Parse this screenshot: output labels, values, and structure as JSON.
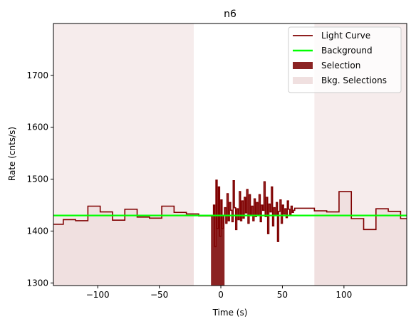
{
  "chart_data": {
    "type": "line",
    "title": "n6",
    "xlabel": "Time (s)",
    "ylabel": "Rate (cnts/s)",
    "xlim": [
      -136,
      151
    ],
    "ylim": [
      1295,
      1800
    ],
    "xticks": [
      -100,
      -50,
      0,
      50,
      100
    ],
    "yticks": [
      1300,
      1400,
      1500,
      1600,
      1700
    ],
    "grid": false,
    "legend_position": "top-right",
    "colors": {
      "light_curve": "#7f0000",
      "background": "#00ff00",
      "selection": "#8b2323",
      "bkg_selection": "#f0e0e0"
    },
    "legend": [
      {
        "label": "Light Curve",
        "kind": "line",
        "color": "#7f0000"
      },
      {
        "label": "Background",
        "kind": "line",
        "color": "#00ff00"
      },
      {
        "label": "Selection",
        "kind": "patch",
        "color": "#8b2323"
      },
      {
        "label": "Bkg. Selections",
        "kind": "patch",
        "color": "#f0e0e0"
      }
    ],
    "series": [
      {
        "name": "Light Curve",
        "step": "post",
        "x": [
          -136,
          -128,
          -118,
          -108,
          -98,
          -88,
          -78,
          -68,
          -58,
          -48,
          -38,
          -28,
          -18,
          -6,
          -5,
          -4,
          -3,
          -2,
          -1,
          0,
          1,
          2,
          3,
          4,
          5,
          6,
          7,
          8,
          9,
          10,
          11,
          12,
          13,
          14,
          15,
          16,
          17,
          18,
          19,
          20,
          21,
          22,
          23,
          24,
          25,
          26,
          27,
          28,
          29,
          30,
          31,
          32,
          33,
          34,
          35,
          36,
          37,
          38,
          39,
          40,
          41,
          42,
          43,
          44,
          45,
          46,
          47,
          48,
          49,
          50,
          51,
          52,
          53,
          54,
          55,
          56,
          57,
          58,
          59,
          60,
          76,
          86,
          96,
          106,
          116,
          126,
          136,
          146,
          151
        ],
        "y": [
          1413,
          1422,
          1420,
          1448,
          1437,
          1421,
          1442,
          1427,
          1425,
          1448,
          1436,
          1433,
          1429,
          1450,
          1370,
          1498,
          1405,
          1485,
          1390,
          1460,
          1405,
          1430,
          1445,
          1415,
          1472,
          1420,
          1455,
          1440,
          1418,
          1497,
          1445,
          1403,
          1443,
          1422,
          1476,
          1420,
          1458,
          1425,
          1465,
          1435,
          1480,
          1415,
          1470,
          1430,
          1448,
          1420,
          1462,
          1428,
          1455,
          1432,
          1470,
          1418,
          1450,
          1440,
          1495,
          1428,
          1465,
          1395,
          1452,
          1437,
          1485,
          1410,
          1445,
          1430,
          1455,
          1380,
          1438,
          1460,
          1415,
          1450,
          1433,
          1443,
          1426,
          1458,
          1442,
          1432,
          1448,
          1436,
          1440,
          1444,
          1439,
          1437,
          1476,
          1424,
          1403,
          1443,
          1438,
          1424,
          1410
        ]
      },
      {
        "name": "Background",
        "x": [
          -136,
          151
        ],
        "y": [
          1430,
          1430
        ]
      }
    ],
    "selection": {
      "label": "Selection",
      "x": [
        -8,
        3
      ]
    },
    "bkg_selections": [
      {
        "label": "Bkg. Selections",
        "x": [
          -136,
          -22
        ]
      },
      {
        "label": "Bkg. Selections",
        "x": [
          76,
          151
        ]
      }
    ]
  }
}
